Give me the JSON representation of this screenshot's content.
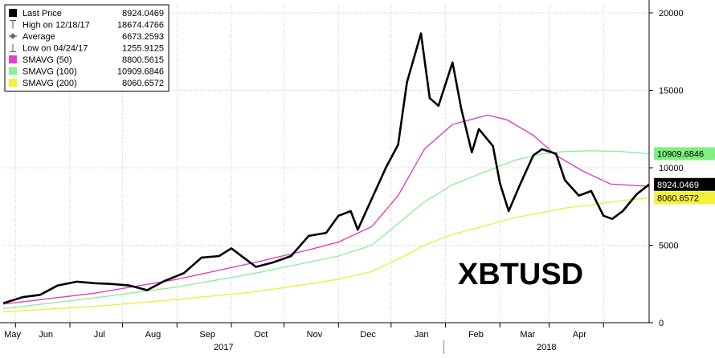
{
  "chart_data": {
    "type": "line",
    "title": "",
    "watermark_label": "XBTUSD",
    "y_ticks": [
      0,
      5000,
      10000,
      15000,
      20000
    ],
    "y_tick_labels": [
      "0",
      "5000",
      "10000",
      "15000",
      "20000"
    ],
    "ylim": [
      0,
      20000
    ],
    "x_months": [
      "May",
      "Jun",
      "Jul",
      "Aug",
      "Sep",
      "Oct",
      "Nov",
      "Dec",
      "Jan",
      "Feb",
      "Mar",
      "Apr"
    ],
    "x_years": [
      "2017",
      "2018"
    ],
    "legend": {
      "placement": "top-left",
      "entries": [
        {
          "label": "Last Price",
          "value": "8924.0469",
          "marker": "black-square"
        },
        {
          "label": "High on 12/18/17",
          "value": "18674.4766",
          "marker": "high-tick"
        },
        {
          "label": "Average",
          "value": "6673.2593",
          "marker": "average-dash"
        },
        {
          "label": "Low on 04/24/17",
          "value": "1255.9125",
          "marker": "low-tick"
        },
        {
          "label": "SMAVG (50)",
          "value": "8800.5615",
          "marker": "magenta-square"
        },
        {
          "label": "SMAVG (100)",
          "value": "10909.6846",
          "marker": "green-square"
        },
        {
          "label": "SMAVG (200)",
          "value": "8060.6572",
          "marker": "yellow-square"
        }
      ]
    },
    "right_tags": [
      {
        "value": "10909.6846",
        "color": "#7ff07f",
        "text_color": "#000000"
      },
      {
        "value": "8924.0469",
        "color": "#000000",
        "text_color": "#ffffff"
      },
      {
        "value": "8060.6572",
        "color": "#f5f03c",
        "text_color": "#000000"
      }
    ],
    "colors": {
      "price": "#000000",
      "smavg50": "#e040b8",
      "smavg100": "#8fef9a",
      "smavg200": "#eeee44",
      "grid": "#c8c8c8"
    },
    "series": [
      {
        "name": "Last Price",
        "x": [
          "2017-04-24",
          "2017-05-05",
          "2017-05-15",
          "2017-05-25",
          "2017-06-05",
          "2017-06-15",
          "2017-06-25",
          "2017-07-05",
          "2017-07-15",
          "2017-07-25",
          "2017-08-05",
          "2017-08-15",
          "2017-08-25",
          "2017-09-01",
          "2017-09-08",
          "2017-09-15",
          "2017-09-25",
          "2017-10-05",
          "2017-10-15",
          "2017-10-25",
          "2017-11-01",
          "2017-11-08",
          "2017-11-12",
          "2017-11-20",
          "2017-11-28",
          "2017-12-05",
          "2017-12-10",
          "2017-12-18",
          "2017-12-23",
          "2017-12-28",
          "2018-01-05",
          "2018-01-10",
          "2018-01-16",
          "2018-01-20",
          "2018-01-28",
          "2018-02-01",
          "2018-02-06",
          "2018-02-12",
          "2018-02-20",
          "2018-02-25",
          "2018-03-05",
          "2018-03-10",
          "2018-03-18",
          "2018-03-25",
          "2018-04-01",
          "2018-04-06",
          "2018-04-12",
          "2018-04-20",
          "2018-04-27"
        ],
        "values": [
          1256,
          1650,
          1800,
          2400,
          2650,
          2550,
          2500,
          2400,
          2100,
          2700,
          3200,
          4200,
          4300,
          4800,
          4200,
          3600,
          3900,
          4300,
          5600,
          5800,
          6900,
          7200,
          6000,
          8000,
          10000,
          11500,
          15500,
          18674,
          14500,
          14000,
          16800,
          13800,
          11000,
          12500,
          11400,
          9000,
          7200,
          8800,
          10800,
          11200,
          10900,
          9200,
          8200,
          8500,
          6900,
          6700,
          7200,
          8300,
          8924
        ]
      },
      {
        "name": "SMAVG (50)",
        "x": [
          "2017-04-24",
          "2017-06-15",
          "2017-08-01",
          "2017-09-15",
          "2017-10-15",
          "2017-11-01",
          "2017-11-20",
          "2017-12-05",
          "2017-12-20",
          "2018-01-05",
          "2018-01-25",
          "2018-02-05",
          "2018-02-20",
          "2018-03-05",
          "2018-03-20",
          "2018-04-05",
          "2018-04-27"
        ],
        "values": [
          1200,
          1900,
          2800,
          3900,
          4700,
          5200,
          6200,
          8200,
          11200,
          12800,
          13400,
          13100,
          12100,
          10800,
          9800,
          8950,
          8800
        ]
      },
      {
        "name": "SMAVG (100)",
        "x": [
          "2017-04-24",
          "2017-06-15",
          "2017-08-01",
          "2017-09-15",
          "2017-10-15",
          "2017-11-01",
          "2017-11-20",
          "2017-12-05",
          "2017-12-20",
          "2018-01-05",
          "2018-01-25",
          "2018-02-10",
          "2018-02-25",
          "2018-03-10",
          "2018-03-25",
          "2018-04-10",
          "2018-04-27"
        ],
        "values": [
          900,
          1600,
          2300,
          3200,
          3900,
          4300,
          5000,
          6400,
          7800,
          8900,
          9800,
          10500,
          10900,
          11050,
          11100,
          11050,
          10910
        ]
      },
      {
        "name": "SMAVG (200)",
        "x": [
          "2017-04-24",
          "2017-06-15",
          "2017-08-01",
          "2017-09-15",
          "2017-10-15",
          "2017-11-01",
          "2017-11-20",
          "2017-12-05",
          "2017-12-20",
          "2018-01-05",
          "2018-01-25",
          "2018-02-10",
          "2018-02-25",
          "2018-03-10",
          "2018-03-25",
          "2018-04-10",
          "2018-04-27"
        ],
        "values": [
          700,
          1050,
          1500,
          2000,
          2500,
          2800,
          3300,
          4100,
          5000,
          5700,
          6300,
          6800,
          7100,
          7400,
          7600,
          7850,
          8060
        ]
      }
    ]
  }
}
